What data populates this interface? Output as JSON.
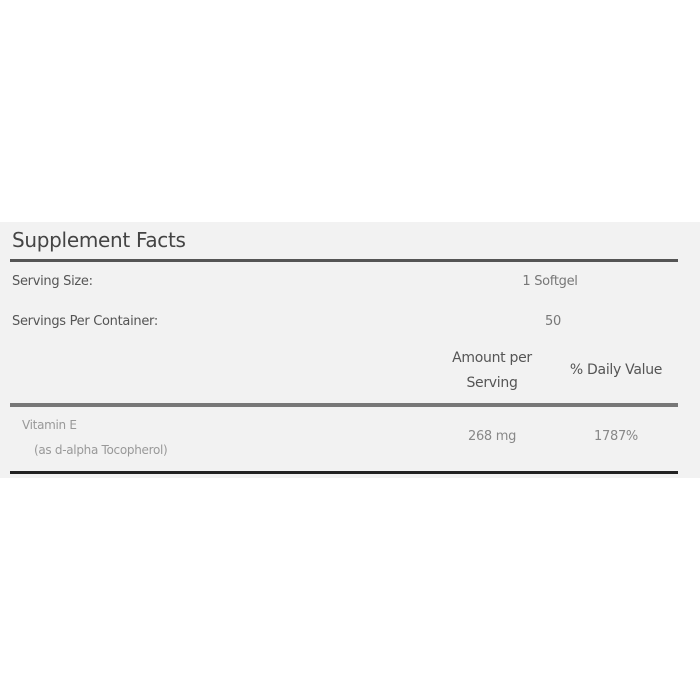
{
  "title": "Supplement Facts",
  "serving_size": {
    "label": "Serving Size:",
    "value": "1 Softgel"
  },
  "servings_per_container": {
    "label": "Servings Per Container:",
    "value": "50"
  },
  "columns": {
    "amount": "Amount per Serving",
    "daily_value": "% Daily Value"
  },
  "nutrients": [
    {
      "name": "Vitamin E",
      "detail": "(as d-alpha Tocopherol)",
      "amount": "268 mg",
      "daily_value": "1787%"
    }
  ]
}
